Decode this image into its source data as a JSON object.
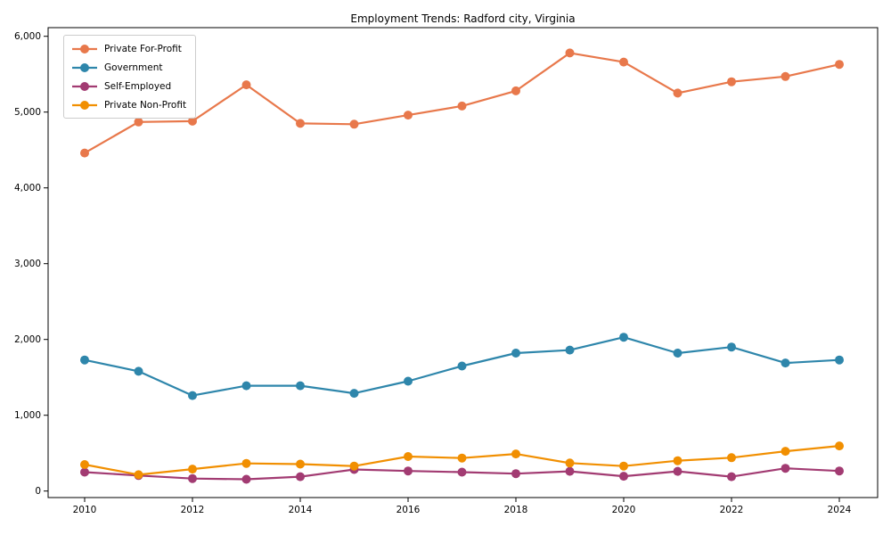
{
  "chart_data": {
    "type": "line",
    "title": "Employment Trends: Radford city, Virginia",
    "xlabel": "",
    "ylabel": "",
    "x": [
      2010,
      2011,
      2012,
      2013,
      2014,
      2015,
      2016,
      2017,
      2018,
      2019,
      2020,
      2021,
      2022,
      2023,
      2024
    ],
    "x_ticks": [
      2010,
      2012,
      2014,
      2016,
      2018,
      2020,
      2022,
      2024
    ],
    "x_tick_labels": [
      "2010",
      "2012",
      "2014",
      "2016",
      "2018",
      "2020",
      "2022",
      "2024"
    ],
    "ylim": [
      0,
      6000
    ],
    "y_ticks": [
      0,
      1000,
      2000,
      3000,
      4000,
      5000,
      6000
    ],
    "y_tick_labels": [
      "0",
      "1,000",
      "2,000",
      "3,000",
      "4,000",
      "5,000",
      "6,000"
    ],
    "grid": false,
    "legend_position": "upper-left",
    "marker": "circle",
    "series": [
      {
        "name": "Private For-Profit",
        "color": "#E8784B",
        "values": [
          4460,
          4870,
          4880,
          5360,
          4850,
          4840,
          4960,
          5080,
          5280,
          5780,
          5660,
          5250,
          5400,
          5470,
          5630
        ]
      },
      {
        "name": "Government",
        "color": "#2E86AB",
        "values": [
          1730,
          1580,
          1260,
          1390,
          1390,
          1290,
          1450,
          1650,
          1820,
          1860,
          2030,
          1820,
          1900,
          1690,
          1730
        ]
      },
      {
        "name": "Self-Employed",
        "color": "#A23B72",
        "values": [
          250,
          205,
          165,
          155,
          190,
          285,
          265,
          250,
          230,
          260,
          195,
          260,
          190,
          300,
          265
        ]
      },
      {
        "name": "Private Non-Profit",
        "color": "#F18F01",
        "values": [
          350,
          215,
          290,
          365,
          355,
          330,
          455,
          435,
          490,
          370,
          330,
          400,
          440,
          525,
          595
        ]
      }
    ]
  }
}
